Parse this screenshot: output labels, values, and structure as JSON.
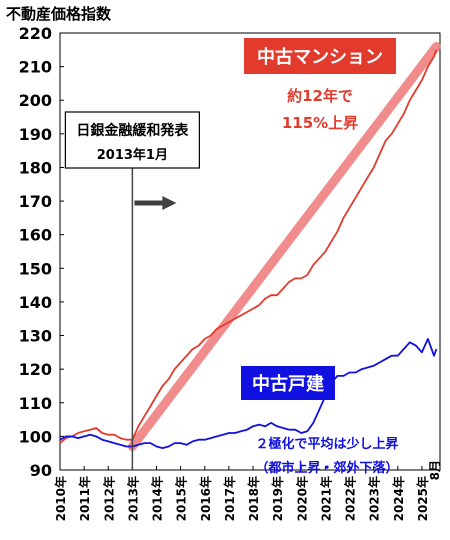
{
  "chart_data": {
    "type": "line",
    "ylabel": "不動産価格指数",
    "ylim": [
      90,
      220
    ],
    "yticks": [
      90,
      100,
      110,
      120,
      130,
      140,
      150,
      160,
      170,
      180,
      190,
      200,
      210,
      220
    ],
    "xlim": [
      2010.0,
      2025.75
    ],
    "xticks": [
      "2010年",
      "2011年",
      "2012年",
      "2013年",
      "2014年",
      "2015年",
      "2016年",
      "2017年",
      "2018年",
      "2019年",
      "2020年",
      "2021年",
      "2022年",
      "2023年",
      "2024年",
      "2025年"
    ],
    "x_end_label": "8月",
    "grid": false,
    "event": {
      "x": 2013.0,
      "label_line1": "日銀金融緩和発表",
      "label_line2": "2013年1月"
    },
    "trend": {
      "from": [
        2013.0,
        97
      ],
      "to": [
        2025.6,
        216
      ],
      "color": "#f08080"
    },
    "series": [
      {
        "name": "中古マンション",
        "color": "#e23b2e",
        "annotation": [
          "約12年で",
          "115%上昇"
        ],
        "x": [
          2010.0,
          2010.25,
          2010.5,
          2010.75,
          2011.0,
          2011.25,
          2011.5,
          2011.75,
          2012.0,
          2012.25,
          2012.5,
          2012.75,
          2013.0,
          2013.25,
          2013.5,
          2013.75,
          2014.0,
          2014.25,
          2014.5,
          2014.75,
          2015.0,
          2015.25,
          2015.5,
          2015.75,
          2016.0,
          2016.25,
          2016.5,
          2016.75,
          2017.0,
          2017.25,
          2017.5,
          2017.75,
          2018.0,
          2018.25,
          2018.5,
          2018.75,
          2019.0,
          2019.25,
          2019.5,
          2019.75,
          2020.0,
          2020.25,
          2020.5,
          2020.75,
          2021.0,
          2021.25,
          2021.5,
          2021.75,
          2022.0,
          2022.25,
          2022.5,
          2022.75,
          2023.0,
          2023.25,
          2023.5,
          2023.75,
          2024.0,
          2024.25,
          2024.5,
          2024.75,
          2025.0,
          2025.25,
          2025.5,
          2025.6
        ],
        "y": [
          98,
          99.5,
          100,
          101,
          101.5,
          102,
          102.5,
          101,
          100.5,
          100.5,
          99.5,
          99,
          99,
          103,
          106,
          109,
          112,
          115,
          117,
          120,
          122,
          124,
          126,
          127,
          129,
          130,
          132,
          133,
          134,
          135,
          136,
          137,
          138,
          139,
          141,
          142,
          142,
          144,
          146,
          147,
          147,
          148,
          151,
          153,
          155,
          158,
          161,
          165,
          168,
          171,
          174,
          177,
          180,
          184,
          188,
          190,
          193,
          196,
          200,
          203,
          206,
          210,
          213,
          215
        ]
      },
      {
        "name": "中古戸建",
        "color": "#1010e0",
        "annotation": [
          "２極化で平均は少し上昇",
          "（都市上昇・郊外下落）"
        ],
        "x": [
          2010.0,
          2010.25,
          2010.5,
          2010.75,
          2011.0,
          2011.25,
          2011.5,
          2011.75,
          2012.0,
          2012.25,
          2012.5,
          2012.75,
          2013.0,
          2013.25,
          2013.5,
          2013.75,
          2014.0,
          2014.25,
          2014.5,
          2014.75,
          2015.0,
          2015.25,
          2015.5,
          2015.75,
          2016.0,
          2016.25,
          2016.5,
          2016.75,
          2017.0,
          2017.25,
          2017.5,
          2017.75,
          2018.0,
          2018.25,
          2018.5,
          2018.75,
          2019.0,
          2019.25,
          2019.5,
          2019.75,
          2020.0,
          2020.25,
          2020.5,
          2020.75,
          2021.0,
          2021.25,
          2021.5,
          2021.75,
          2022.0,
          2022.25,
          2022.5,
          2022.75,
          2023.0,
          2023.25,
          2023.5,
          2023.75,
          2024.0,
          2024.25,
          2024.5,
          2024.75,
          2025.0,
          2025.25,
          2025.5,
          2025.6
        ],
        "y": [
          99,
          100,
          100,
          99.5,
          100,
          100.5,
          100,
          99,
          98.5,
          98,
          97.5,
          97,
          97,
          97.5,
          98,
          98,
          97,
          96.5,
          97,
          98,
          98,
          97.5,
          98.5,
          99,
          99,
          99.5,
          100,
          100.5,
          101,
          101,
          101.5,
          102,
          103,
          103.5,
          103,
          104,
          103,
          102.5,
          102,
          102,
          101,
          101.5,
          104,
          108,
          112,
          116,
          118,
          118,
          119,
          119,
          120,
          120.5,
          121,
          122,
          123,
          124,
          124,
          126,
          128,
          127,
          125,
          129,
          124,
          126
        ]
      }
    ]
  }
}
